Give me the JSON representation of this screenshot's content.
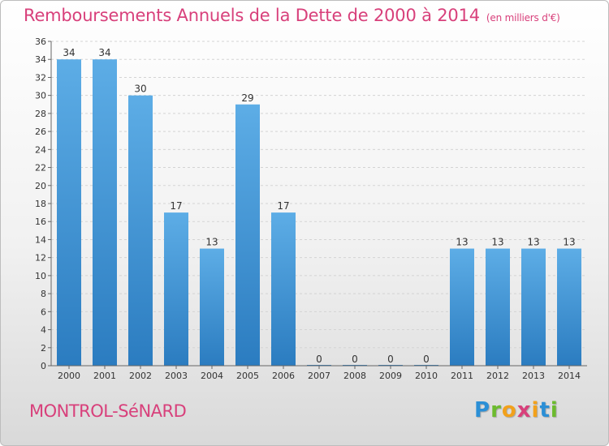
{
  "title": "Remboursements Annuels de la Dette de 2000 à 2014",
  "unit": "(en milliers d'€)",
  "commune": "MONTROL-SéNARD",
  "logo": {
    "letters": [
      "P",
      "r",
      "o",
      "x",
      "i",
      "t",
      "i"
    ],
    "text": "Proxiti"
  },
  "colors": {
    "accent": "#d8407b",
    "bar_top": "#5dade6",
    "bar_bottom": "#2b7cc0"
  },
  "chart_data": {
    "type": "bar",
    "title": "Remboursements Annuels de la Dette de 2000 à 2014",
    "xlabel": "",
    "ylabel": "",
    "categories": [
      "2000",
      "2001",
      "2002",
      "2003",
      "2004",
      "2005",
      "2006",
      "2007",
      "2008",
      "2009",
      "2010",
      "2011",
      "2012",
      "2013",
      "2014"
    ],
    "values": [
      34,
      34,
      30,
      17,
      13,
      29,
      17,
      0,
      0,
      0,
      0,
      13,
      13,
      13,
      13
    ],
    "ylim": [
      0,
      36
    ],
    "yticks": [
      0,
      2,
      4,
      6,
      8,
      10,
      12,
      14,
      16,
      18,
      20,
      22,
      24,
      26,
      28,
      30,
      32,
      34,
      36
    ],
    "grid": true
  }
}
